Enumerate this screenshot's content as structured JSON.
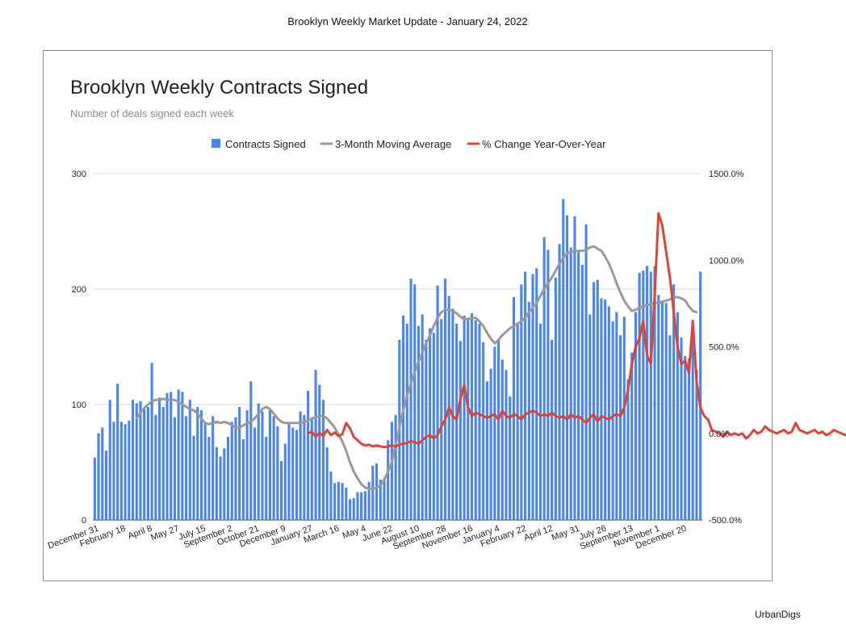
{
  "header": {
    "title": "Brooklyn Weekly Market Update - January 24, 2022"
  },
  "footer": {
    "brand": "UrbanDigs"
  },
  "chart_data": {
    "type": "bar",
    "title": "Brooklyn Weekly Contracts Signed",
    "subtitle": "Number of deals signed each week",
    "legend_position": "top",
    "grid": true,
    "x_tick_labels": [
      "December 31",
      "February 18",
      "April 8",
      "May 27",
      "July 15",
      "September 2",
      "October 21",
      "December 9",
      "January 27",
      "March 16",
      "May 4",
      "June 22",
      "August 10",
      "September 28",
      "November 16",
      "January 4",
      "February 22",
      "April 12",
      "May 31",
      "July 26",
      "September 13",
      "November 1",
      "December 20"
    ],
    "y_left": {
      "ticks": [
        "0",
        "100",
        "200",
        "300"
      ],
      "range": [
        0,
        300
      ]
    },
    "y_right": {
      "ticks": [
        "-500.0%",
        "0.0%",
        "500.0%",
        "1000.0%",
        "1500.0%"
      ],
      "range": [
        -500,
        1500
      ]
    },
    "series": [
      {
        "name": "Contracts Signed",
        "kind": "bar",
        "axis": "left",
        "color": "#4a86e8",
        "values": [
          54,
          75,
          80,
          60,
          104,
          85,
          118,
          85,
          83,
          86,
          104,
          101,
          103,
          96,
          98,
          136,
          91,
          106,
          98,
          110,
          111,
          89,
          113,
          111,
          90,
          104,
          73,
          98,
          95,
          84,
          72,
          90,
          63,
          55,
          62,
          72,
          85,
          89,
          98,
          70,
          95,
          120,
          80,
          101,
          94,
          72,
          95,
          90,
          81,
          51,
          66,
          83,
          80,
          78,
          94,
          91,
          112,
          88,
          130,
          117,
          104,
          63,
          42,
          32,
          33,
          32,
          28,
          18,
          19,
          24,
          24,
          25,
          33,
          47,
          49,
          35,
          36,
          69,
          85,
          91,
          156,
          177,
          170,
          209,
          204,
          168,
          178,
          156,
          166,
          162,
          203,
          174,
          209,
          194,
          183,
          170,
          155,
          177,
          175,
          179,
          173,
          170,
          154,
          120,
          131,
          150,
          156,
          139,
          130,
          107,
          193,
          171,
          204,
          215,
          189,
          213,
          218,
          170,
          245,
          234,
          156,
          210,
          239,
          278,
          264,
          236,
          263,
          232,
          221,
          256,
          178,
          206,
          208,
          192,
          191,
          185,
          172,
          180,
          160,
          176,
          122,
          145,
          180,
          214,
          216,
          220,
          215,
          220,
          195,
          190,
          188,
          160,
          204,
          180,
          158,
          142,
          140,
          159,
          130,
          215
        ]
      },
      {
        "name": "3-Month Moving Average",
        "kind": "line",
        "axis": "left",
        "color": "#999999",
        "values": [
          88,
          93,
          97,
          100,
          103,
          104,
          104,
          105,
          104,
          104,
          104,
          102,
          100,
          98,
          96,
          95,
          92,
          88,
          84,
          83,
          84,
          85,
          84,
          85,
          84,
          82,
          80,
          80,
          82,
          84,
          85,
          88,
          92,
          96,
          98,
          96,
          92,
          88,
          85,
          84,
          84,
          84,
          84,
          84,
          85,
          86,
          88,
          89,
          90,
          90,
          88,
          84,
          80,
          74,
          68,
          60,
          50,
          42,
          36,
          31,
          28,
          27,
          27,
          28,
          30,
          35,
          42,
          50,
          65,
          80,
          95,
          108,
          118,
          128,
          137,
          145,
          153,
          160,
          168,
          175,
          180,
          182,
          182,
          181,
          179,
          176,
          174,
          174,
          175,
          175,
          172,
          168,
          162,
          157,
          153,
          156,
          160,
          163,
          166,
          168,
          170,
          172,
          175,
          180,
          184,
          188,
          194,
          200,
          205,
          210,
          216,
          222,
          227,
          231,
          232,
          233,
          233,
          233,
          234,
          236,
          237,
          235,
          233,
          228,
          222,
          214,
          205,
          197,
          190,
          185,
          181,
          182,
          184,
          185,
          186,
          187,
          188,
          188,
          189,
          190,
          191,
          193,
          193,
          192,
          190,
          185,
          181,
          180
        ],
        "start_index": 11
      },
      {
        "name": "% Change Year-Over-Year",
        "kind": "line",
        "axis": "right",
        "color": "#db4437",
        "values": [
          0,
          10,
          -20,
          5,
          -15,
          20,
          -10,
          5,
          -15,
          -5,
          60,
          30,
          -20,
          -40,
          -60,
          -70,
          -65,
          -75,
          -70,
          -75,
          -80,
          -75,
          -70,
          -75,
          -65,
          -60,
          -55,
          -45,
          -50,
          -60,
          -40,
          -20,
          -10,
          -30,
          -10,
          40,
          80,
          150,
          100,
          80,
          200,
          280,
          150,
          100,
          120,
          110,
          100,
          90,
          100,
          110,
          80,
          130,
          100,
          90,
          110,
          100,
          80,
          110,
          120,
          130,
          120,
          100,
          110,
          100,
          120,
          100,
          90,
          100,
          80,
          110,
          90,
          100,
          80,
          60,
          90,
          110,
          70,
          100,
          90,
          80,
          100,
          110,
          100,
          150,
          250,
          400,
          500,
          550,
          650,
          450,
          400,
          800,
          1270,
          1200,
          1050,
          900,
          700,
          500,
          400,
          420,
          350,
          650,
          300,
          150,
          100,
          80,
          20,
          10,
          0,
          -20,
          10,
          -10,
          0,
          -10,
          0,
          -30,
          -10,
          20,
          0,
          10,
          40,
          20,
          10,
          0,
          10,
          20,
          0,
          10,
          60,
          20,
          10,
          0,
          10,
          20,
          0,
          10,
          -10,
          0,
          20,
          10,
          0,
          -10,
          0,
          10,
          20
        ],
        "start_index": 56
      }
    ]
  }
}
